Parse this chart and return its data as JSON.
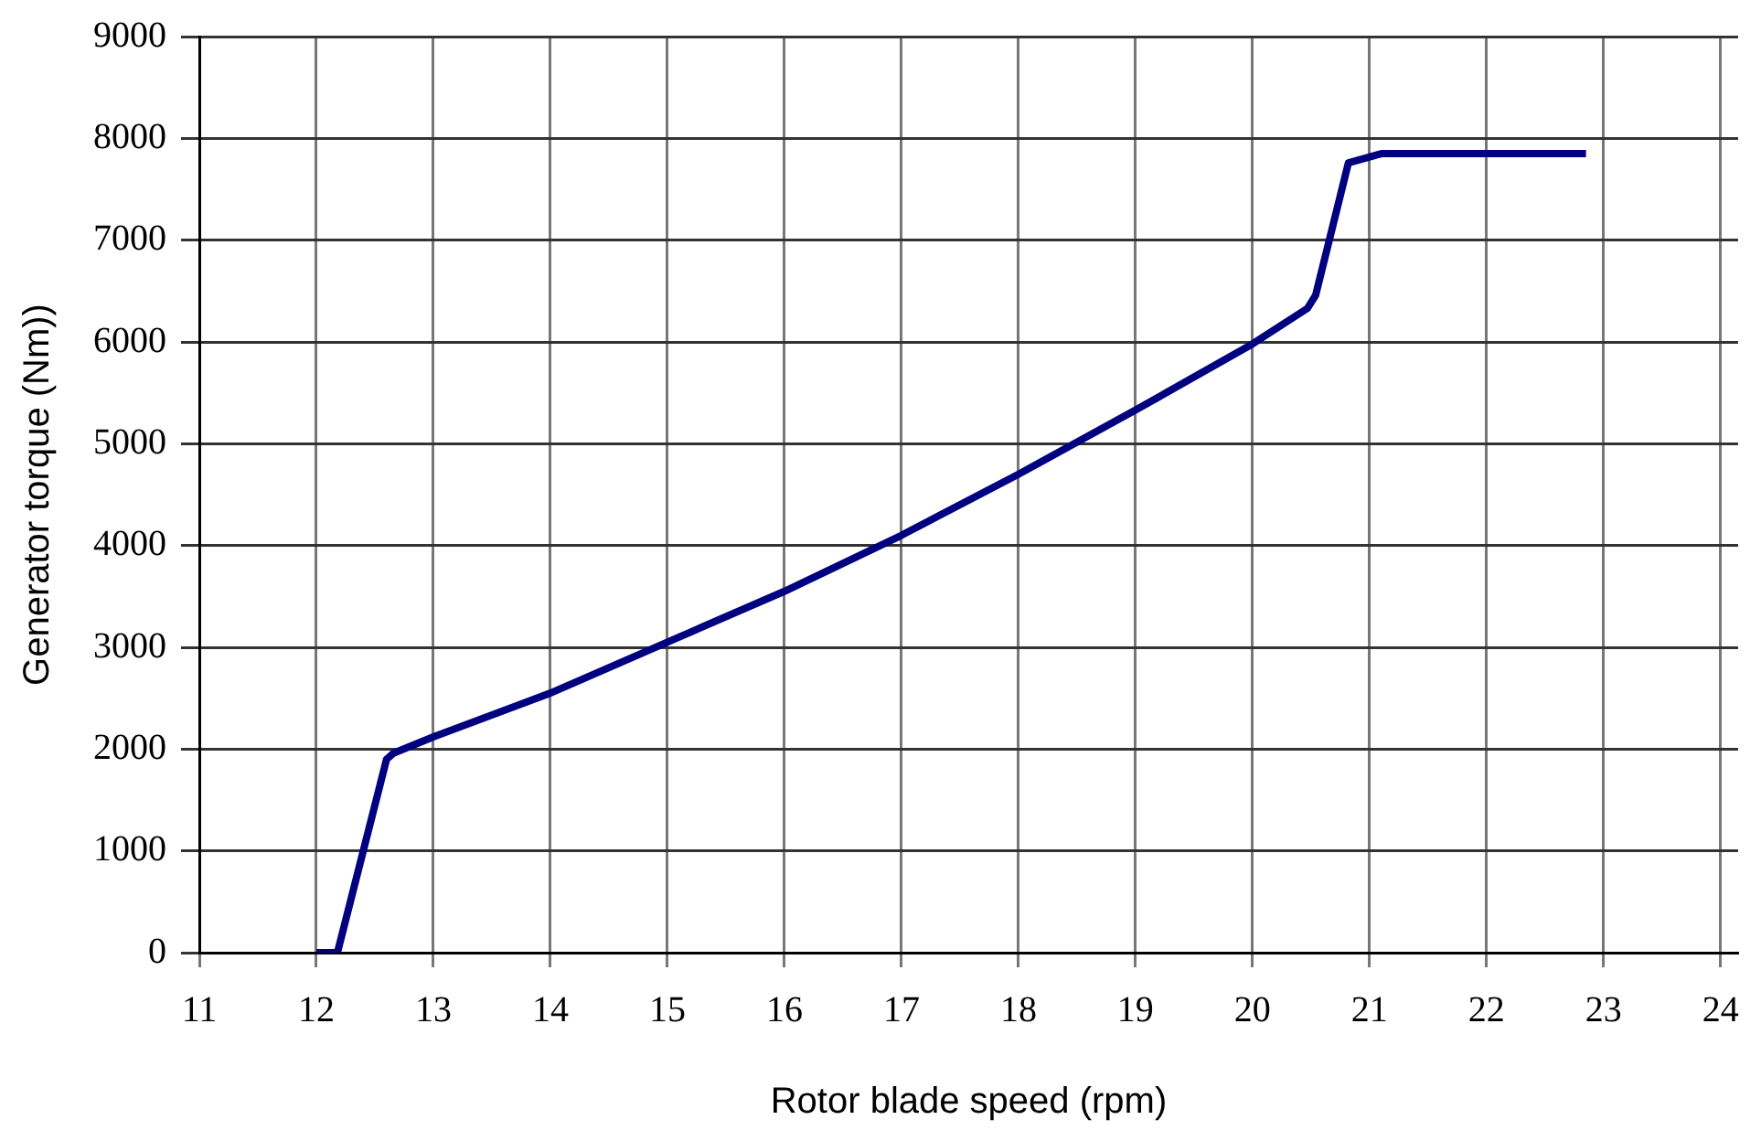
{
  "chart_data": {
    "type": "line",
    "xlabel": "Rotor blade speed (rpm)",
    "ylabel": "Generator torque (Nm))",
    "xlim": [
      11,
      24.15
    ],
    "xticks": [
      11,
      12,
      13,
      14,
      15,
      16,
      17,
      18,
      19,
      20,
      21,
      22,
      23,
      24
    ],
    "ylim": [
      0,
      9000
    ],
    "yticks": [
      0,
      1000,
      2000,
      3000,
      4000,
      5000,
      6000,
      7000,
      8000,
      9000
    ],
    "grid": true,
    "legend": false,
    "marker": "none",
    "line_style": "solid",
    "series": [
      {
        "color": "#000080",
        "x": [
          12,
          12.18,
          12.6,
          12.66,
          13,
          14,
          15,
          16,
          17,
          18,
          19,
          20,
          20.47,
          20.54,
          20.82,
          21.1,
          22.85
        ],
        "values": [
          0,
          0,
          1900,
          1960,
          2120,
          2550,
          3050,
          3550,
          4100,
          4700,
          5330,
          5980,
          6330,
          6460,
          7760,
          7850,
          7850
        ]
      }
    ]
  }
}
